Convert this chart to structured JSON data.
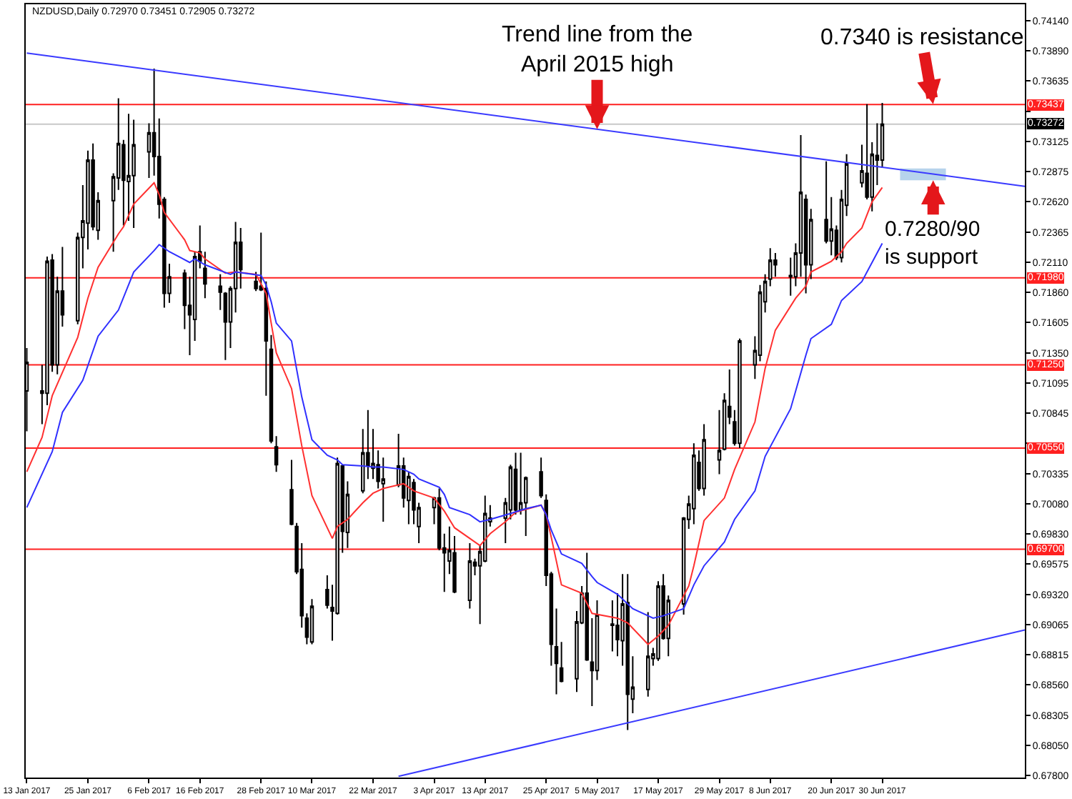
{
  "chart_data": {
    "type": "candlestick",
    "title": "NZDUSD,Daily 0.72970 0.73451 0.72905 0.73272",
    "x": [
      "2017-01-13",
      "2017-01-16",
      "2017-01-17",
      "2017-01-18",
      "2017-01-19",
      "2017-01-20",
      "2017-01-23",
      "2017-01-24",
      "2017-01-25",
      "2017-01-26",
      "2017-01-27",
      "2017-01-30",
      "2017-01-31",
      "2017-02-01",
      "2017-02-02",
      "2017-02-03",
      "2017-02-06",
      "2017-02-07",
      "2017-02-08",
      "2017-02-09",
      "2017-02-10",
      "2017-02-13",
      "2017-02-14",
      "2017-02-15",
      "2017-02-16",
      "2017-02-17",
      "2017-02-20",
      "2017-02-21",
      "2017-02-22",
      "2017-02-23",
      "2017-02-24",
      "2017-02-27",
      "2017-02-28",
      "2017-03-01",
      "2017-03-02",
      "2017-03-03",
      "2017-03-06",
      "2017-03-07",
      "2017-03-08",
      "2017-03-09",
      "2017-03-10",
      "2017-03-13",
      "2017-03-14",
      "2017-03-15",
      "2017-03-16",
      "2017-03-17",
      "2017-03-20",
      "2017-03-21",
      "2017-03-22",
      "2017-03-23",
      "2017-03-24",
      "2017-03-27",
      "2017-03-28",
      "2017-03-29",
      "2017-03-30",
      "2017-03-31",
      "2017-04-03",
      "2017-04-04",
      "2017-04-05",
      "2017-04-06",
      "2017-04-07",
      "2017-04-10",
      "2017-04-11",
      "2017-04-12",
      "2017-04-13",
      "2017-04-14",
      "2017-04-17",
      "2017-04-18",
      "2017-04-19",
      "2017-04-20",
      "2017-04-21",
      "2017-04-24",
      "2017-04-25",
      "2017-04-26",
      "2017-04-27",
      "2017-04-28",
      "2017-05-01",
      "2017-05-02",
      "2017-05-03",
      "2017-05-04",
      "2017-05-05",
      "2017-05-08",
      "2017-05-09",
      "2017-05-10",
      "2017-05-11",
      "2017-05-12",
      "2017-05-15",
      "2017-05-16",
      "2017-05-17",
      "2017-05-18",
      "2017-05-19",
      "2017-05-22",
      "2017-05-23",
      "2017-05-24",
      "2017-05-25",
      "2017-05-26",
      "2017-05-29",
      "2017-05-30",
      "2017-05-31",
      "2017-06-01",
      "2017-06-02",
      "2017-06-05",
      "2017-06-06",
      "2017-06-07",
      "2017-06-08",
      "2017-06-09",
      "2017-06-12",
      "2017-06-13",
      "2017-06-14",
      "2017-06-15",
      "2017-06-16",
      "2017-06-19",
      "2017-06-20",
      "2017-06-21",
      "2017-06-22",
      "2017-06-23",
      "2017-06-26",
      "2017-06-27",
      "2017-06-28",
      "2017-06-29",
      "2017-06-30"
    ],
    "ohlc": [
      [
        0.7103,
        0.7139,
        0.7069,
        0.7127
      ],
      [
        0.7103,
        0.7125,
        0.7075,
        0.7101
      ],
      [
        0.7101,
        0.7216,
        0.7091,
        0.7212
      ],
      [
        0.7213,
        0.7218,
        0.7119,
        0.7125
      ],
      [
        0.7125,
        0.7199,
        0.7117,
        0.7187
      ],
      [
        0.7187,
        0.7224,
        0.7157,
        0.7167
      ],
      [
        0.7162,
        0.7236,
        0.7159,
        0.7232
      ],
      [
        0.7232,
        0.7276,
        0.7206,
        0.7246
      ],
      [
        0.7244,
        0.7305,
        0.7222,
        0.7297
      ],
      [
        0.7297,
        0.7311,
        0.7238,
        0.7241
      ],
      [
        0.7238,
        0.727,
        0.723,
        0.7263
      ],
      [
        0.7263,
        0.7286,
        0.722,
        0.7283
      ],
      [
        0.7282,
        0.7349,
        0.7272,
        0.7311
      ],
      [
        0.731,
        0.7314,
        0.7242,
        0.728
      ],
      [
        0.7279,
        0.7336,
        0.7246,
        0.7284
      ],
      [
        0.7284,
        0.7331,
        0.724,
        0.731
      ],
      [
        0.7304,
        0.7328,
        0.7282,
        0.732
      ],
      [
        0.732,
        0.7374,
        0.7284,
        0.73
      ],
      [
        0.73,
        0.7332,
        0.7248,
        0.726
      ],
      [
        0.7264,
        0.7266,
        0.7173,
        0.7185
      ],
      [
        0.7185,
        0.721,
        0.7177,
        0.7199
      ],
      [
        0.7202,
        0.7205,
        0.7155,
        0.7175
      ],
      [
        0.7175,
        0.7199,
        0.7133,
        0.7167
      ],
      [
        0.7163,
        0.722,
        0.7145,
        0.7216
      ],
      [
        0.722,
        0.7242,
        0.7206,
        0.7212
      ],
      [
        0.7206,
        0.722,
        0.7181,
        0.7193
      ],
      [
        0.7191,
        0.7201,
        0.7171,
        0.7186
      ],
      [
        0.7185,
        0.7186,
        0.7129,
        0.7161
      ],
      [
        0.7161,
        0.7191,
        0.7139,
        0.7189
      ],
      [
        0.7189,
        0.7245,
        0.7169,
        0.7228
      ],
      [
        0.7228,
        0.724,
        0.7189,
        0.7205
      ],
      [
        0.7195,
        0.7203,
        0.7187,
        0.7189
      ],
      [
        0.7191,
        0.7236,
        0.7187,
        0.7188
      ],
      [
        0.7189,
        0.7195,
        0.7099,
        0.7145
      ],
      [
        0.7138,
        0.715,
        0.7059,
        0.7061
      ],
      [
        0.7056,
        0.7065,
        0.7035,
        0.7041
      ],
      [
        0.702,
        0.7045,
        0.699,
        0.6991
      ],
      [
        0.6989,
        0.6992,
        0.6949,
        0.6951
      ],
      [
        0.6953,
        0.6975,
        0.6904,
        0.6914
      ],
      [
        0.6912,
        0.6916,
        0.689,
        0.6896
      ],
      [
        0.6892,
        0.6928,
        0.689,
        0.6922
      ],
      [
        0.6936,
        0.6948,
        0.692,
        0.6923
      ],
      [
        0.6921,
        0.694,
        0.6893,
        0.6918
      ],
      [
        0.6916,
        0.7047,
        0.6915,
        0.7042
      ],
      [
        0.704,
        0.7041,
        0.6967,
        0.6985
      ],
      [
        0.6984,
        0.7027,
        0.6971,
        0.7016
      ],
      [
        0.7019,
        0.7071,
        0.7017,
        0.7051
      ],
      [
        0.7051,
        0.7087,
        0.7029,
        0.704
      ],
      [
        0.7038,
        0.7071,
        0.7029,
        0.7042
      ],
      [
        0.7041,
        0.7053,
        0.7021,
        0.7027
      ],
      [
        0.7025,
        0.7047,
        0.6993,
        0.7029
      ],
      [
        0.7024,
        0.7067,
        0.7022,
        0.704
      ],
      [
        0.704,
        0.7047,
        0.7005,
        0.7013
      ],
      [
        0.7011,
        0.7035,
        0.6991,
        0.7031
      ],
      [
        0.7026,
        0.7029,
        0.6991,
        0.7003
      ],
      [
        0.6989,
        0.7009,
        0.6975,
        0.7005
      ],
      [
        0.7005,
        0.7014,
        0.6991,
        0.7013
      ],
      [
        0.7013,
        0.7021,
        0.6969,
        0.6971
      ],
      [
        0.6971,
        0.6983,
        0.6934,
        0.6967
      ],
      [
        0.696,
        0.6989,
        0.6949,
        0.6969
      ],
      [
        0.6967,
        0.6981,
        0.6933,
        0.6934
      ],
      [
        0.6927,
        0.6975,
        0.692,
        0.696
      ],
      [
        0.6959,
        0.6962,
        0.6948,
        0.6956
      ],
      [
        0.6956,
        0.6973,
        0.6907,
        0.6968
      ],
      [
        0.696,
        0.7015,
        0.6959,
        0.7
      ],
      [
        0.6993,
        0.7007,
        0.6989,
        0.6996
      ],
      [
        0.6996,
        0.7013,
        0.6975,
        0.7009
      ],
      [
        0.7003,
        0.7041,
        0.6995,
        0.7039
      ],
      [
        0.7037,
        0.7051,
        0.6999,
        0.7003
      ],
      [
        0.7003,
        0.7051,
        0.6999,
        0.7009
      ],
      [
        0.7009,
        0.7031,
        0.6981,
        0.703
      ],
      [
        0.7035,
        0.7047,
        0.7013,
        0.7015
      ],
      [
        0.7011,
        0.7016,
        0.6939,
        0.6948
      ],
      [
        0.6949,
        0.6951,
        0.6872,
        0.689
      ],
      [
        0.6888,
        0.692,
        0.6848,
        0.6874
      ],
      [
        0.687,
        0.6892,
        0.6858,
        0.6859
      ],
      [
        0.6861,
        0.6918,
        0.685,
        0.6909
      ],
      [
        0.6908,
        0.6939,
        0.6907,
        0.6933
      ],
      [
        0.6933,
        0.6967,
        0.6876,
        0.6877
      ],
      [
        0.6875,
        0.6912,
        0.6838,
        0.6868
      ],
      [
        0.6868,
        0.6927,
        0.686,
        0.6915
      ],
      [
        0.6906,
        0.6927,
        0.6884,
        0.6907
      ],
      [
        0.6906,
        0.6933,
        0.688,
        0.6894
      ],
      [
        0.6893,
        0.6949,
        0.6872,
        0.6924
      ],
      [
        0.6925,
        0.6949,
        0.6818,
        0.6848
      ],
      [
        0.6844,
        0.688,
        0.6832,
        0.6854
      ],
      [
        0.6852,
        0.6917,
        0.6846,
        0.688
      ],
      [
        0.6878,
        0.6887,
        0.6872,
        0.6882
      ],
      [
        0.6878,
        0.6943,
        0.6876,
        0.6939
      ],
      [
        0.6939,
        0.6949,
        0.6894,
        0.6895
      ],
      [
        0.6895,
        0.6931,
        0.688,
        0.6927
      ],
      [
        0.6924,
        0.6997,
        0.6915,
        0.6996
      ],
      [
        0.6995,
        0.7015,
        0.6987,
        0.7008
      ],
      [
        0.7004,
        0.7059,
        0.6991,
        0.7049
      ],
      [
        0.7043,
        0.7053,
        0.7019,
        0.7021
      ],
      [
        0.7021,
        0.7075,
        0.7015,
        0.7062
      ],
      [
        0.7045,
        0.7087,
        0.7033,
        0.7053
      ],
      [
        0.7054,
        0.7101,
        0.7053,
        0.7095
      ],
      [
        0.709,
        0.7121,
        0.7075,
        0.7081
      ],
      [
        0.7077,
        0.7087,
        0.7057,
        0.7059
      ],
      [
        0.7059,
        0.7147,
        0.7055,
        0.7145
      ],
      [
        0.7125,
        0.7149,
        0.7113,
        0.7137
      ],
      [
        0.7133,
        0.7192,
        0.7128,
        0.7186
      ],
      [
        0.7178,
        0.7201,
        0.7169,
        0.7195
      ],
      [
        0.7197,
        0.7223,
        0.7191,
        0.7213
      ],
      [
        0.7213,
        0.7219,
        0.7199,
        0.7209
      ],
      [
        0.72,
        0.7215,
        0.7183,
        0.7199
      ],
      [
        0.7199,
        0.7227,
        0.7191,
        0.7219
      ],
      [
        0.7219,
        0.7318,
        0.7199,
        0.727
      ],
      [
        0.7264,
        0.7268,
        0.7185,
        0.7209
      ],
      [
        0.7209,
        0.7256,
        0.7197,
        0.7247
      ],
      [
        0.7247,
        0.7296,
        0.7227,
        0.7229
      ],
      [
        0.7229,
        0.7266,
        0.7217,
        0.7239
      ],
      [
        0.7238,
        0.7242,
        0.7213,
        0.7215
      ],
      [
        0.7215,
        0.7272,
        0.7211,
        0.7264
      ],
      [
        0.7259,
        0.7302,
        0.725,
        0.7294
      ],
      [
        0.7278,
        0.731,
        0.7274,
        0.7288
      ],
      [
        0.7286,
        0.7344,
        0.7264,
        0.7266
      ],
      [
        0.7266,
        0.7312,
        0.7254,
        0.7302
      ],
      [
        0.7301,
        0.7328,
        0.7276,
        0.7297
      ],
      [
        0.7297,
        0.73451,
        0.72905,
        0.73272
      ]
    ],
    "series": [
      {
        "type": "line",
        "color": "#ff3030",
        "x": [
          "2017-01-13",
          "2017-01-16",
          "2017-01-18",
          "2017-01-23",
          "2017-01-25",
          "2017-01-27",
          "2017-01-31",
          "2017-02-01",
          "2017-02-03",
          "2017-02-07",
          "2017-02-08",
          "2017-02-09",
          "2017-02-13",
          "2017-02-14",
          "2017-02-16",
          "2017-02-17",
          "2017-02-21",
          "2017-02-23",
          "2017-02-27",
          "2017-03-01",
          "2017-03-02",
          "2017-03-03",
          "2017-03-06",
          "2017-03-07",
          "2017-03-08",
          "2017-03-10",
          "2017-03-14",
          "2017-03-15",
          "2017-03-17",
          "2017-03-20",
          "2017-03-22",
          "2017-03-24",
          "2017-03-28",
          "2017-03-30",
          "2017-04-03",
          "2017-04-05",
          "2017-04-07",
          "2017-04-12",
          "2017-04-14",
          "2017-04-17",
          "2017-04-19",
          "2017-04-24",
          "2017-04-25",
          "2017-04-26",
          "2017-04-28",
          "2017-05-02",
          "2017-05-04",
          "2017-05-09",
          "2017-05-11",
          "2017-05-15",
          "2017-05-17",
          "2017-05-19",
          "2017-05-23",
          "2017-05-24",
          "2017-05-26",
          "2017-05-30",
          "2017-06-01",
          "2017-06-05",
          "2017-06-07",
          "2017-06-09",
          "2017-06-13",
          "2017-06-15",
          "2017-06-16",
          "2017-06-20",
          "2017-06-22",
          "2017-06-23",
          "2017-06-26",
          "2017-06-28",
          "2017-06-29",
          "2017-06-30"
        ],
        "values": [
          0.7035,
          0.7064,
          0.7099,
          0.7148,
          0.7181,
          0.7207,
          0.7235,
          0.7241,
          0.726,
          0.7278,
          0.7268,
          0.7253,
          0.723,
          0.7221,
          0.7219,
          0.7214,
          0.7202,
          0.7203,
          0.7201,
          0.7185,
          0.716,
          0.7135,
          0.7105,
          0.7081,
          0.7057,
          0.7015,
          0.6979,
          0.6989,
          0.6995,
          0.7009,
          0.7017,
          0.7021,
          0.7025,
          0.7019,
          0.7013,
          0.7002,
          0.6988,
          0.6973,
          0.6983,
          0.6993,
          0.7001,
          0.7007,
          0.6999,
          0.698,
          0.694,
          0.6933,
          0.6916,
          0.6912,
          0.6908,
          0.689,
          0.6897,
          0.6906,
          0.6939,
          0.6956,
          0.6994,
          0.7013,
          0.7037,
          0.7077,
          0.7122,
          0.7154,
          0.7181,
          0.7191,
          0.7203,
          0.7212,
          0.722,
          0.7227,
          0.724,
          0.7262,
          0.7268,
          0.7274
        ]
      },
      {
        "type": "line",
        "color": "#3030ff",
        "x": [
          "2017-01-13",
          "2017-01-18",
          "2017-01-20",
          "2017-01-24",
          "2017-01-27",
          "2017-01-31",
          "2017-02-03",
          "2017-02-07",
          "2017-02-08",
          "2017-02-09",
          "2017-02-10",
          "2017-02-14",
          "2017-02-15",
          "2017-02-17",
          "2017-02-22",
          "2017-02-23",
          "2017-02-28",
          "2017-03-01",
          "2017-03-02",
          "2017-03-03",
          "2017-03-06",
          "2017-03-07",
          "2017-03-08",
          "2017-03-10",
          "2017-03-13",
          "2017-03-15",
          "2017-03-16",
          "2017-03-20",
          "2017-03-22",
          "2017-03-24",
          "2017-03-28",
          "2017-03-30",
          "2017-03-31",
          "2017-04-04",
          "2017-04-05",
          "2017-04-06",
          "2017-04-10",
          "2017-04-12",
          "2017-04-14",
          "2017-04-18",
          "2017-04-21",
          "2017-04-24",
          "2017-04-25",
          "2017-04-26",
          "2017-04-28",
          "2017-05-02",
          "2017-05-04",
          "2017-05-05",
          "2017-05-09",
          "2017-05-12",
          "2017-05-16",
          "2017-05-18",
          "2017-05-22",
          "2017-05-24",
          "2017-05-26",
          "2017-05-30",
          "2017-06-01",
          "2017-06-05",
          "2017-06-07",
          "2017-06-12",
          "2017-06-14",
          "2017-06-15",
          "2017-06-16",
          "2017-06-20",
          "2017-06-22",
          "2017-06-26",
          "2017-06-28",
          "2017-06-30"
        ],
        "values": [
          0.7005,
          0.7052,
          0.7085,
          0.7112,
          0.7149,
          0.7171,
          0.7203,
          0.7221,
          0.7226,
          0.7223,
          0.722,
          0.7211,
          0.7214,
          0.7209,
          0.7201,
          0.7203,
          0.72,
          0.7192,
          0.7178,
          0.716,
          0.7145,
          0.7121,
          0.7098,
          0.7062,
          0.7049,
          0.7045,
          0.7041,
          0.704,
          0.7039,
          0.7039,
          0.7037,
          0.7033,
          0.7029,
          0.7022,
          0.7016,
          0.7005,
          0.6999,
          0.6993,
          0.6995,
          0.7,
          0.7004,
          0.7007,
          0.6999,
          0.6986,
          0.6966,
          0.6958,
          0.6947,
          0.6942,
          0.6932,
          0.692,
          0.6912,
          0.6914,
          0.692,
          0.694,
          0.6956,
          0.6976,
          0.6995,
          0.7019,
          0.7048,
          0.7088,
          0.7118,
          0.7133,
          0.7147,
          0.7159,
          0.7179,
          0.7195,
          0.7211,
          0.7227
        ]
      },
      {
        "type": "line",
        "color": "#3a3aff",
        "x": [
          "2017-01-13",
          "2017-07-28"
        ],
        "values": [
          0.7387,
          0.7275
        ]
      },
      {
        "type": "line",
        "color": "#3a3aff",
        "x": [
          "2017-03-27",
          "2017-07-28"
        ],
        "values": [
          0.6779,
          0.6902
        ]
      }
    ],
    "ref_lines": [
      {
        "axis": "y",
        "value": 0.73437,
        "label": "0.73437",
        "color": "#ff2020"
      },
      {
        "axis": "y",
        "value": 0.73272,
        "label": "0.73272",
        "color": "#c8c8c8"
      },
      {
        "axis": "y",
        "value": 0.7198,
        "label": "0.71980",
        "color": "#ff2020"
      },
      {
        "axis": "y",
        "value": 0.7125,
        "label": "0.71250",
        "color": "#ff2020"
      },
      {
        "axis": "y",
        "value": 0.7055,
        "label": "0.70550",
        "color": "#ff2020"
      },
      {
        "axis": "y",
        "value": 0.697,
        "label": "0.69700",
        "color": "#ff2020"
      }
    ],
    "bands": [
      {
        "axis": "y",
        "from": 0.728,
        "to": 0.729,
        "color": "#a9cbe9"
      }
    ],
    "annotations": [
      {
        "text": "Trend line from the\nApril 2015 high",
        "x": "2017-05-05",
        "y": 0.7323
      },
      {
        "text": "0.7340 is resistance",
        "x": "2017-07-10",
        "y": 0.7344
      },
      {
        "text": "0.7280/90\nis support",
        "x": "2017-07-10",
        "y": 0.728
      }
    ],
    "xlim": [
      "2017-01-12T19:00",
      "2017-07-28"
    ],
    "ylim": [
      0.6778,
      0.7428
    ],
    "xticks": [
      {
        "value": "2017-01-13",
        "label": "13 Jan 2017"
      },
      {
        "value": "2017-01-25",
        "label": "25 Jan 2017"
      },
      {
        "value": "2017-02-06",
        "label": "6 Feb 2017"
      },
      {
        "value": "2017-02-16",
        "label": "16 Feb 2017"
      },
      {
        "value": "2017-02-28",
        "label": "28 Feb 2017"
      },
      {
        "value": "2017-03-10",
        "label": "10 Mar 2017"
      },
      {
        "value": "2017-03-22",
        "label": "22 Mar 2017"
      },
      {
        "value": "2017-04-03",
        "label": "3 Apr 2017"
      },
      {
        "value": "2017-04-13",
        "label": "13 Apr 2017"
      },
      {
        "value": "2017-04-25",
        "label": "25 Apr 2017"
      },
      {
        "value": "2017-05-05",
        "label": "5 May 2017"
      },
      {
        "value": "2017-05-17",
        "label": "17 May 2017"
      },
      {
        "value": "2017-05-29",
        "label": "29 May 2017"
      },
      {
        "value": "2017-06-08",
        "label": "8 Jun 2017"
      },
      {
        "value": "2017-06-20",
        "label": "20 Jun 2017"
      },
      {
        "value": "2017-06-30",
        "label": "30 Jun 2017"
      }
    ],
    "yticks": [
      {
        "value": 0.7414,
        "label": "0.74140"
      },
      {
        "value": 0.7389,
        "label": "0.73890"
      },
      {
        "value": 0.73635,
        "label": "0.73635"
      },
      {
        "value": 0.7338,
        "label": null
      },
      {
        "value": 0.73125,
        "label": "0.73125"
      },
      {
        "value": 0.72875,
        "label": "0.72875"
      },
      {
        "value": 0.7262,
        "label": "0.72620"
      },
      {
        "value": 0.72365,
        "label": "0.72365"
      },
      {
        "value": 0.7211,
        "label": "0.72110"
      },
      {
        "value": 0.7186,
        "label": "0.71860"
      },
      {
        "value": 0.71605,
        "label": "0.71605"
      },
      {
        "value": 0.7135,
        "label": "0.71350"
      },
      {
        "value": 0.71095,
        "label": "0.71095"
      },
      {
        "value": 0.70845,
        "label": "0.70845"
      },
      {
        "value": 0.7059,
        "label": null
      },
      {
        "value": 0.70335,
        "label": "0.70335"
      },
      {
        "value": 0.7008,
        "label": "0.70080"
      },
      {
        "value": 0.6983,
        "label": "0.69830"
      },
      {
        "value": 0.69575,
        "label": "0.69575"
      },
      {
        "value": 0.6932,
        "label": "0.69320"
      },
      {
        "value": 0.69065,
        "label": "0.69065"
      },
      {
        "value": 0.68815,
        "label": "0.68815"
      },
      {
        "value": 0.6856,
        "label": "0.68560"
      },
      {
        "value": 0.68305,
        "label": "0.68305"
      },
      {
        "value": 0.6805,
        "label": "0.68050"
      },
      {
        "value": 0.678,
        "label": "0.67800"
      }
    ],
    "grid": false
  }
}
